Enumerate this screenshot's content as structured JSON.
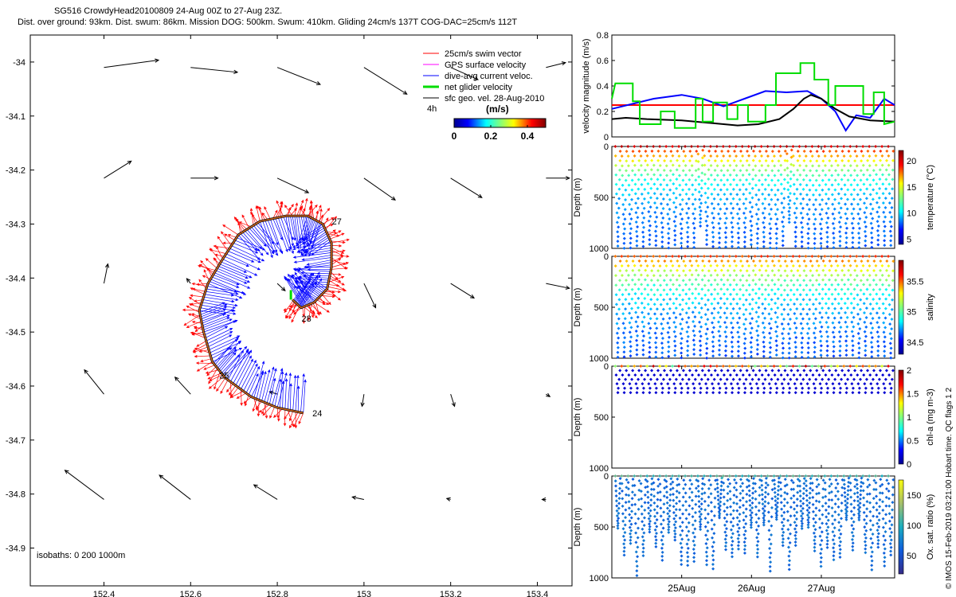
{
  "header": {
    "line1": "SG516 CrowdyHead20100809 24-Aug 00Z to 27-Aug 23Z.",
    "line2": "Dist. over ground: 93km. Dist. swum: 86km. Mission DOG: 500km. Swum: 410km. Gliding 24cm/s 137T COG-DAC=25cm/s 112T"
  },
  "credit": "© IMOS 15-Feb-2019 03:21:00 Hobart time. QC flags 1  2",
  "map": {
    "xlim": [
      152.23,
      153.48
    ],
    "ylim": [
      -34.97,
      -33.95
    ],
    "xticks": [
      152.4,
      152.6,
      152.8,
      153.0,
      153.2,
      153.4
    ],
    "xticklabels": [
      "152.4",
      "152.6",
      "152.8",
      "153",
      "153.2",
      "153.4"
    ],
    "yticks": [
      -34.0,
      -34.1,
      -34.2,
      -34.3,
      -34.4,
      -34.5,
      -34.6,
      -34.7,
      -34.8,
      -34.9
    ],
    "yticklabels": [
      "-34",
      "-34.1",
      "-34.2",
      "-34.3",
      "-34.4",
      "-34.5",
      "-34.6",
      "-34.7",
      "-34.8",
      "-34.9"
    ],
    "isobaths_label": "isobaths: 0   200  1000m",
    "legend": [
      {
        "label": "25cm/s swim vector",
        "color": "#ff0000"
      },
      {
        "label": "GPS surface velocity",
        "color": "#ff00ff"
      },
      {
        "label": "dive-avg current veloc.",
        "color": "#0000ff"
      },
      {
        "label": "net glider velocity",
        "color": "#00dd00"
      },
      {
        "label": "sfc geo. vel. 28-Aug-2010",
        "color": "#000000"
      }
    ],
    "legend_extra": "4h",
    "colorbar_unit": "(m/s)",
    "colorbar_ticks": [
      "0",
      "0.2",
      "0.4"
    ],
    "colorbar_range": [
      0,
      0.5
    ],
    "track_labels": [
      {
        "text": "24",
        "lon": 152.87,
        "lat": -34.65
      },
      {
        "text": "25",
        "lon": 152.655,
        "lat": -34.58
      },
      {
        "text": "27",
        "lon": 152.915,
        "lat": -34.295
      },
      {
        "text": "28",
        "lon": 152.845,
        "lat": -34.475
      }
    ],
    "track": [
      [
        152.86,
        -34.65
      ],
      [
        152.8,
        -34.64
      ],
      [
        152.74,
        -34.62
      ],
      [
        152.68,
        -34.585
      ],
      [
        152.65,
        -34.555
      ],
      [
        152.63,
        -34.5
      ],
      [
        152.62,
        -34.46
      ],
      [
        152.64,
        -34.41
      ],
      [
        152.67,
        -34.37
      ],
      [
        152.71,
        -34.32
      ],
      [
        152.76,
        -34.295
      ],
      [
        152.82,
        -34.285
      ],
      [
        152.87,
        -34.285
      ],
      [
        152.905,
        -34.3
      ],
      [
        152.925,
        -34.335
      ],
      [
        152.925,
        -34.38
      ],
      [
        152.915,
        -34.42
      ],
      [
        152.885,
        -34.445
      ],
      [
        152.855,
        -34.455
      ],
      [
        152.835,
        -34.44
      ]
    ],
    "geo_vectors": [
      [
        152.4,
        -34.01,
        0.14,
        0.015
      ],
      [
        152.6,
        -34.01,
        0.12,
        -0.01
      ],
      [
        152.8,
        -34.01,
        0.11,
        -0.035
      ],
      [
        153.0,
        -34.01,
        0.11,
        -0.055
      ],
      [
        153.2,
        -34.01,
        0.07,
        -0.025
      ],
      [
        153.42,
        -34.01,
        0.05,
        0.01
      ],
      [
        152.4,
        -34.215,
        0.07,
        0.035
      ],
      [
        152.6,
        -34.215,
        0.07,
        0
      ],
      [
        152.8,
        -34.215,
        0.08,
        -0.03
      ],
      [
        153.0,
        -34.215,
        0.08,
        -0.045
      ],
      [
        153.2,
        -34.215,
        0.08,
        -0.04
      ],
      [
        153.42,
        -34.215,
        0.06,
        0
      ],
      [
        152.4,
        -34.41,
        0.01,
        0.04
      ],
      [
        152.6,
        -34.41,
        -0.01,
        0.01
      ],
      [
        152.8,
        -34.41,
        0.02,
        -0.015
      ],
      [
        153.0,
        -34.41,
        0.03,
        -0.05
      ],
      [
        153.2,
        -34.41,
        0.06,
        -0.03
      ],
      [
        153.42,
        -34.41,
        0.06,
        -0.01
      ],
      [
        152.4,
        -34.615,
        -0.05,
        0.05
      ],
      [
        152.6,
        -34.615,
        -0.04,
        0.035
      ],
      [
        152.8,
        -34.615,
        -0.02,
        0.005
      ],
      [
        153.0,
        -34.615,
        -0.005,
        -0.025
      ],
      [
        153.2,
        -34.615,
        0.01,
        -0.025
      ],
      [
        153.42,
        -34.615,
        0.01,
        -0.005
      ],
      [
        152.4,
        -34.81,
        -0.1,
        0.06
      ],
      [
        152.6,
        -34.81,
        -0.08,
        0.05
      ],
      [
        152.8,
        -34.81,
        -0.06,
        0.03
      ],
      [
        153.0,
        -34.81,
        -0.03,
        0.005
      ],
      [
        153.2,
        -34.81,
        -0.01,
        0.002
      ],
      [
        153.42,
        -34.81,
        -0.01,
        0
      ]
    ]
  },
  "ts_panel": {
    "ylabel": "velocity magnitude (m/s)",
    "ylim": [
      0,
      0.8
    ],
    "yticks": [
      "0",
      "0.2",
      "0.4",
      "0.6",
      "0.8"
    ],
    "ytick_values": [
      0,
      0.2,
      0.4,
      0.6,
      0.8
    ],
    "xlim_days": [
      0,
      4.05
    ],
    "series": [
      {
        "color": "#ff0000",
        "points": [
          [
            0,
            0.25
          ],
          [
            4.05,
            0.25
          ]
        ]
      },
      {
        "color": "#0000ff",
        "points": [
          [
            0,
            0.22
          ],
          [
            0.3,
            0.26
          ],
          [
            0.6,
            0.3
          ],
          [
            1.0,
            0.33
          ],
          [
            1.3,
            0.3
          ],
          [
            1.6,
            0.24
          ],
          [
            1.9,
            0.3
          ],
          [
            2.2,
            0.36
          ],
          [
            2.5,
            0.35
          ],
          [
            2.8,
            0.36
          ],
          [
            3.0,
            0.3
          ],
          [
            3.2,
            0.2
          ],
          [
            3.35,
            0.05
          ],
          [
            3.5,
            0.17
          ],
          [
            3.7,
            0.15
          ],
          [
            3.9,
            0.3
          ],
          [
            4.05,
            0.25
          ]
        ]
      },
      {
        "color": "#000000",
        "points": [
          [
            0,
            0.14
          ],
          [
            0.2,
            0.15
          ],
          [
            0.5,
            0.14
          ],
          [
            1.0,
            0.13
          ],
          [
            1.4,
            0.11
          ],
          [
            1.8,
            0.09
          ],
          [
            2.1,
            0.1
          ],
          [
            2.4,
            0.14
          ],
          [
            2.6,
            0.22
          ],
          [
            2.75,
            0.3
          ],
          [
            2.85,
            0.33
          ],
          [
            3.0,
            0.3
          ],
          [
            3.2,
            0.22
          ],
          [
            3.4,
            0.16
          ],
          [
            3.7,
            0.13
          ],
          [
            4.05,
            0.12
          ]
        ]
      },
      {
        "color": "#00dd00",
        "points": [
          [
            0,
            0.3
          ],
          [
            0.05,
            0.42
          ],
          [
            0.3,
            0.42
          ],
          [
            0.3,
            0.28
          ],
          [
            0.4,
            0.28
          ],
          [
            0.4,
            0.1
          ],
          [
            0.7,
            0.1
          ],
          [
            0.7,
            0.2
          ],
          [
            0.9,
            0.2
          ],
          [
            0.9,
            0.07
          ],
          [
            1.2,
            0.07
          ],
          [
            1.2,
            0.3
          ],
          [
            1.3,
            0.3
          ],
          [
            1.3,
            0.12
          ],
          [
            1.45,
            0.12
          ],
          [
            1.45,
            0.27
          ],
          [
            1.65,
            0.27
          ],
          [
            1.65,
            0.14
          ],
          [
            1.8,
            0.14
          ],
          [
            1.8,
            0.25
          ],
          [
            1.95,
            0.25
          ],
          [
            1.95,
            0.12
          ],
          [
            2.2,
            0.12
          ],
          [
            2.2,
            0.25
          ],
          [
            2.35,
            0.25
          ],
          [
            2.35,
            0.5
          ],
          [
            2.7,
            0.5
          ],
          [
            2.7,
            0.58
          ],
          [
            2.9,
            0.58
          ],
          [
            2.9,
            0.45
          ],
          [
            3.1,
            0.45
          ],
          [
            3.1,
            0.25
          ],
          [
            3.2,
            0.25
          ],
          [
            3.2,
            0.4
          ],
          [
            3.6,
            0.4
          ],
          [
            3.6,
            0.18
          ],
          [
            3.75,
            0.18
          ],
          [
            3.75,
            0.35
          ],
          [
            3.9,
            0.35
          ],
          [
            3.9,
            0.1
          ],
          [
            4.05,
            0.12
          ]
        ]
      }
    ]
  },
  "depth_panels": [
    {
      "ylabel": "Depth (m)",
      "cb_label": "temperature (°C)",
      "cb_ticks": [
        "5",
        "10",
        "15",
        "20"
      ],
      "cb_tick_values": [
        5,
        10,
        15,
        20
      ],
      "cb_range": [
        4,
        22
      ],
      "cb_map": "jet",
      "kind": "temperature"
    },
    {
      "ylabel": "Depth (m)",
      "cb_label": "salinity",
      "cb_ticks": [
        "34.5",
        "35",
        "35.5"
      ],
      "cb_tick_values": [
        34.5,
        35,
        35.5
      ],
      "cb_range": [
        34.3,
        35.85
      ],
      "cb_map": "jet",
      "kind": "salinity"
    },
    {
      "ylabel": "Depth (m)",
      "cb_label": "chl-a (mg m-3)",
      "cb_ticks": [
        "0",
        "0.5",
        "1",
        "1.5",
        "2"
      ],
      "cb_tick_values": [
        0,
        0.5,
        1,
        1.5,
        2
      ],
      "cb_range": [
        0,
        2
      ],
      "cb_map": "jet",
      "kind": "chl"
    },
    {
      "ylabel": "Depth (m)",
      "cb_label": "Ox. sat. ratio (%)",
      "cb_ticks": [
        "50",
        "100",
        "150"
      ],
      "cb_tick_values": [
        50,
        100,
        150
      ],
      "cb_range": [
        20,
        175
      ],
      "cb_map": "parula",
      "kind": "oxygen"
    }
  ],
  "depth_axis": {
    "yticks": [
      "0",
      "500",
      "1000"
    ],
    "ytick_values": [
      0,
      500,
      1000
    ],
    "ylim": [
      0,
      1000
    ]
  },
  "time_axis": {
    "xticklabels": [
      "25Aug",
      "26Aug",
      "27Aug"
    ],
    "xtick_days": [
      1,
      2,
      3
    ],
    "xlim_days": [
      0,
      4.05
    ]
  }
}
